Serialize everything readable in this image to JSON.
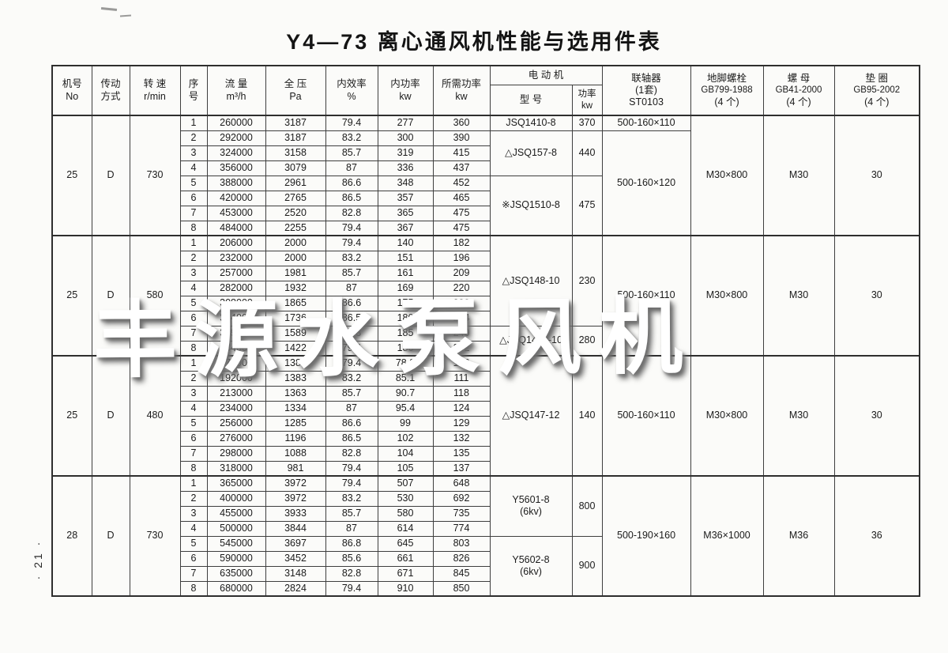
{
  "title": "Y4—73 离心通风机性能与选用件表",
  "watermark": "丰源水泵风机",
  "page_number": "· 21 ·",
  "table": {
    "headers": {
      "jihao": [
        "机号",
        "No"
      ],
      "chuandong": [
        "传动",
        "方式"
      ],
      "zhuansu": [
        "转 速",
        "r/min"
      ],
      "xuhao": [
        "序",
        "号"
      ],
      "liuliang": [
        "流 量",
        "m³/h"
      ],
      "quanya": [
        "全 压",
        "Pa"
      ],
      "neixiaolv": [
        "内效率",
        "%"
      ],
      "neigonglv": [
        "内功率",
        "kw"
      ],
      "suoxugonglv": [
        "所需功率",
        "kw"
      ],
      "motor": [
        "电 动 机"
      ],
      "motor_model": [
        "型 号"
      ],
      "motor_power": [
        "功率",
        "kw"
      ],
      "coupling": [
        "联轴器",
        "(1套)",
        "ST0103"
      ],
      "bolt": [
        "地脚螺栓",
        "GB799-1988",
        "(4 个)"
      ],
      "nut": [
        "螺 母",
        "GB41-2000",
        "(4 个)"
      ],
      "washer": [
        "垫 圈",
        "GB95-2002",
        "(4 个)"
      ]
    },
    "groups": [
      {
        "machine_no": "25",
        "drive": "D",
        "speed": "730",
        "rows": [
          [
            "1",
            "260000",
            "3187",
            "79.4",
            "277",
            "360"
          ],
          [
            "2",
            "292000",
            "3187",
            "83.2",
            "300",
            "390"
          ],
          [
            "3",
            "324000",
            "3158",
            "85.7",
            "319",
            "415"
          ],
          [
            "4",
            "356000",
            "3079",
            "87",
            "336",
            "437"
          ],
          [
            "5",
            "388000",
            "2961",
            "86.6",
            "348",
            "452"
          ],
          [
            "6",
            "420000",
            "2765",
            "86.5",
            "357",
            "465"
          ],
          [
            "7",
            "453000",
            "2520",
            "82.8",
            "365",
            "475"
          ],
          [
            "8",
            "484000",
            "2255",
            "79.4",
            "367",
            "475"
          ]
        ],
        "motors": [
          {
            "model": "JSQ1410-8",
            "power": "370",
            "rows": 1
          },
          {
            "model": "△JSQ157-8",
            "power": "440",
            "rows": 3
          },
          {
            "model": "※JSQ1510-8",
            "power": "475",
            "rows": 4
          }
        ],
        "couplings": [
          {
            "value": "500-160×110",
            "rows": 1
          },
          {
            "value": "500-160×120",
            "rows": 7
          }
        ],
        "bolt": "M30×800",
        "nut": "M30",
        "washer": "30"
      },
      {
        "machine_no": "25",
        "drive": "D",
        "speed": "580",
        "rows": [
          [
            "1",
            "206000",
            "2000",
            "79.4",
            "140",
            "182"
          ],
          [
            "2",
            "232000",
            "2000",
            "83.2",
            "151",
            "196"
          ],
          [
            "3",
            "257000",
            "1981",
            "85.7",
            "161",
            "209"
          ],
          [
            "4",
            "282000",
            "1932",
            "87",
            "169",
            "220"
          ],
          [
            "5",
            "308000",
            "1865",
            "86.6",
            "175",
            "228"
          ],
          [
            "6",
            "334000",
            "1736",
            "86.5",
            "180",
            "234"
          ],
          [
            "7",
            "359000",
            "1589",
            "82.8",
            "185",
            "240"
          ],
          [
            "8",
            "384000",
            "1422",
            "79.4",
            "186",
            "242"
          ]
        ],
        "motors": [
          {
            "model": "△JSQ148-10",
            "power": "230",
            "rows": 6
          },
          {
            "model": "△JSQ1410-10",
            "power": "280",
            "rows": 2
          }
        ],
        "couplings": [
          {
            "value": "500-160×110",
            "rows": 8
          }
        ],
        "bolt": "M30×800",
        "nut": "M30",
        "washer": "30"
      },
      {
        "machine_no": "25",
        "drive": "D",
        "speed": "480",
        "rows": [
          [
            "1",
            "171000",
            "1383",
            "79.4",
            "78.8",
            "102"
          ],
          [
            "2",
            "192000",
            "1383",
            "83.2",
            "85.1",
            "111"
          ],
          [
            "3",
            "213000",
            "1363",
            "85.7",
            "90.7",
            "118"
          ],
          [
            "4",
            "234000",
            "1334",
            "87",
            "95.4",
            "124"
          ],
          [
            "5",
            "256000",
            "1285",
            "86.6",
            "99",
            "129"
          ],
          [
            "6",
            "276000",
            "1196",
            "86.5",
            "102",
            "132"
          ],
          [
            "7",
            "298000",
            "1088",
            "82.8",
            "104",
            "135"
          ],
          [
            "8",
            "318000",
            "981",
            "79.4",
            "105",
            "137"
          ]
        ],
        "motors": [
          {
            "model": "△JSQ147-12",
            "power": "140",
            "rows": 8
          }
        ],
        "couplings": [
          {
            "value": "500-160×110",
            "rows": 8
          }
        ],
        "bolt": "M30×800",
        "nut": "M30",
        "washer": "30"
      },
      {
        "machine_no": "28",
        "drive": "D",
        "speed": "730",
        "rows": [
          [
            "1",
            "365000",
            "3972",
            "79.4",
            "507",
            "648"
          ],
          [
            "2",
            "400000",
            "3972",
            "83.2",
            "530",
            "692"
          ],
          [
            "3",
            "455000",
            "3933",
            "85.7",
            "580",
            "735"
          ],
          [
            "4",
            "500000",
            "3844",
            "87",
            "614",
            "774"
          ],
          [
            "5",
            "545000",
            "3697",
            "86.8",
            "645",
            "803"
          ],
          [
            "6",
            "590000",
            "3452",
            "85.6",
            "661",
            "826"
          ],
          [
            "7",
            "635000",
            "3148",
            "82.8",
            "671",
            "845"
          ],
          [
            "8",
            "680000",
            "2824",
            "79.4",
            "910",
            "850"
          ]
        ],
        "motors": [
          {
            "model": "Y5601-8",
            "note": "(6kv)",
            "power": "800",
            "rows": 4
          },
          {
            "model": "Y5602-8",
            "note": "(6kv)",
            "power": "900",
            "rows": 4
          }
        ],
        "couplings": [
          {
            "value": "500-190×160",
            "rows": 8
          }
        ],
        "bolt": "M36×1000",
        "nut": "M36",
        "washer": "36"
      }
    ]
  }
}
